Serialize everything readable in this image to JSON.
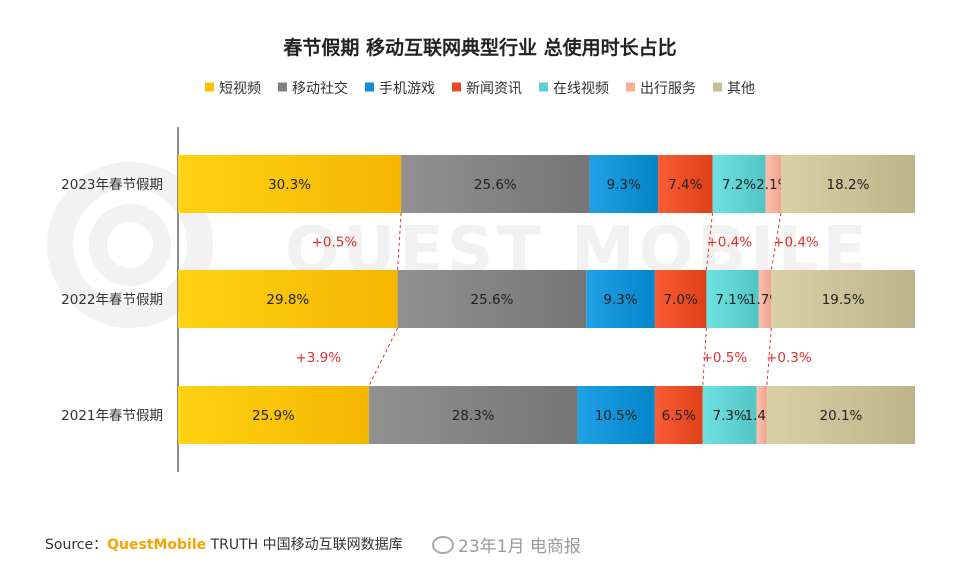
{
  "chart_data": {
    "type": "bar",
    "orientation": "horizontal",
    "stacked": true,
    "normalized": true,
    "title": "春节假期 移动互联网典型行业 总使用时长占比",
    "categories": [
      "2023年春节假期",
      "2022年春节假期",
      "2021年春节假期"
    ],
    "series": [
      {
        "name": "短视频",
        "color": "#ffc000",
        "values": [
          30.3,
          29.8,
          25.9
        ],
        "labels": [
          "30.3%",
          "29.8%",
          "25.9%"
        ]
      },
      {
        "name": "移动社交",
        "color": "#7f7f7f",
        "values": [
          25.6,
          25.6,
          28.3
        ],
        "labels": [
          "25.6%",
          "25.6%",
          "28.3%"
        ]
      },
      {
        "name": "手机游戏",
        "color": "#0e8fd3",
        "values": [
          9.3,
          9.3,
          10.5
        ],
        "labels": [
          "9.3%",
          "9.3%",
          "10.5%"
        ]
      },
      {
        "name": "新闻资讯",
        "color": "#e84a23",
        "values": [
          7.4,
          7.0,
          6.5
        ],
        "labels": [
          "7.4%",
          "7.0%",
          "6.5%"
        ]
      },
      {
        "name": "在线视频",
        "color": "#5ccfcf",
        "values": [
          7.2,
          7.1,
          7.3
        ],
        "labels": [
          "7.2%",
          "7.1%",
          "7.3%"
        ]
      },
      {
        "name": "出行服务",
        "color": "#f9ad9a",
        "values": [
          2.1,
          1.7,
          1.4
        ],
        "labels": [
          "2.1%",
          "1.7%",
          "1.4%"
        ]
      },
      {
        "name": "其他",
        "color": "#c7bf93",
        "values": [
          18.2,
          19.5,
          20.1
        ],
        "labels": [
          "18.2%",
          "19.5%",
          "20.1%"
        ]
      }
    ],
    "annotations": [
      {
        "between": [
          0,
          1
        ],
        "boundary_after_series": 0,
        "text": "+0.5%"
      },
      {
        "between": [
          0,
          1
        ],
        "boundary_after_series": 3,
        "text": "+0.4%"
      },
      {
        "between": [
          0,
          1
        ],
        "boundary_after_series": 5,
        "text": "+0.4%"
      },
      {
        "between": [
          1,
          2
        ],
        "boundary_after_series": 0,
        "text": "+3.9%"
      },
      {
        "between": [
          1,
          2
        ],
        "boundary_after_series": 3,
        "text": "+0.5%"
      },
      {
        "between": [
          1,
          2
        ],
        "boundary_after_series": 5,
        "text": "+0.3%"
      }
    ],
    "legend_position": "top",
    "grid": false
  },
  "footer": {
    "source_prefix": "Source：",
    "brand": "QuestMobile",
    "source_rest": " TRUTH 中国移动互联网数据库",
    "source_tail": "23年1月"
  },
  "watermark": {
    "text": "QUEST MOBILE",
    "weibo_text": "电商报"
  }
}
